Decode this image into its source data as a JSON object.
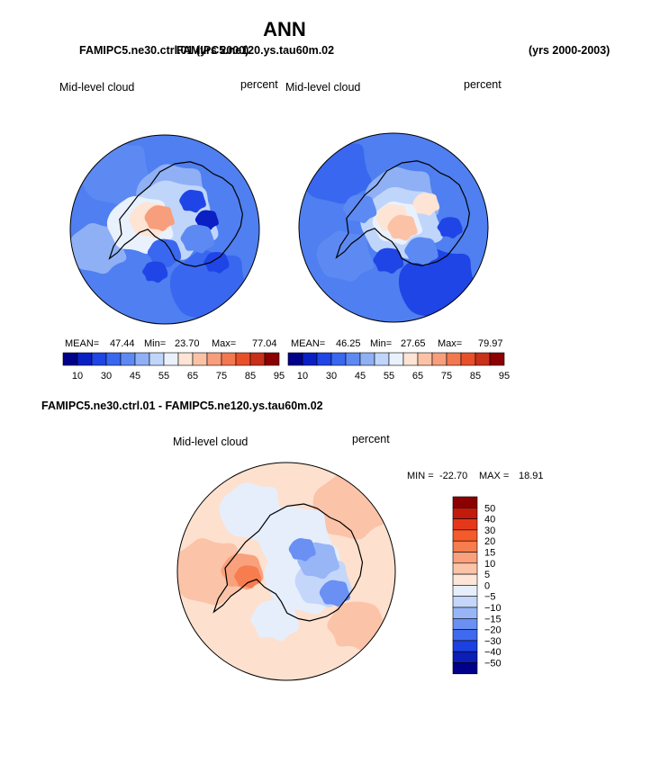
{
  "page": {
    "title": "ANN",
    "top_case_title": "FAMIPC5.ne30.ctrl.01 (yrs 2000)",
    "top_case_title_overlap": "FAMIPC5.ne120.ys.tau60m.02",
    "top_years": "(yrs 2000-2003)",
    "diff_title": "FAMIPC5.ne30.ctrl.01 - FAMIPC5.ne120.ys.tau60m.02"
  },
  "chart_data": [
    {
      "type": "heatmap",
      "projection": "south-polar-stereographic",
      "name": "panel-left",
      "variable_label": "Mid-level cloud",
      "units_label": "percent",
      "stats": {
        "mean_label": "MEAN=",
        "mean": "47.44",
        "min_label": "Min=",
        "min": "23.70",
        "max_label": "Max=",
        "max": "77.04"
      },
      "levels": [
        "10",
        "30",
        "45",
        "55",
        "65",
        "75",
        "85",
        "95"
      ]
    },
    {
      "type": "heatmap",
      "projection": "south-polar-stereographic",
      "name": "panel-right",
      "variable_label": "Mid-level cloud",
      "units_label": "percent",
      "stats": {
        "mean_label": "MEAN=",
        "mean": "46.25",
        "min_label": "Min=",
        "min": "27.65",
        "max_label": "Max=",
        "max": "79.97"
      },
      "levels": [
        "10",
        "30",
        "45",
        "55",
        "65",
        "75",
        "85",
        "95"
      ]
    },
    {
      "type": "heatmap",
      "projection": "south-polar-stereographic",
      "name": "panel-diff",
      "variable_label": "Mid-level cloud",
      "units_label": "percent",
      "stats": {
        "min_label": "MIN =",
        "min": "-22.70",
        "max_label": "MAX =",
        "max": "18.91"
      },
      "levels": [
        "50",
        "40",
        "30",
        "20",
        "15",
        "10",
        "5",
        "0",
        "−5",
        "−10",
        "−15",
        "−20",
        "−30",
        "−40",
        "−50"
      ]
    }
  ],
  "palettes": {
    "abs": [
      "#00008b",
      "#0a1fc4",
      "#1f45e6",
      "#3a67f0",
      "#5d8af2",
      "#8fb0f5",
      "#c0d5fa",
      "#e9f1fd",
      "#fde4d4",
      "#fbc2a6",
      "#f79e7c",
      "#f2784f",
      "#e9502a",
      "#c9301a",
      "#8b0000"
    ],
    "diff": [
      "#8b0000",
      "#c21a0c",
      "#e5381a",
      "#f55a2a",
      "#f77c4e",
      "#f9a07c",
      "#fbc3a8",
      "#fde5d8",
      "#e6eefc",
      "#c4d6fa",
      "#98b6f6",
      "#6990f2",
      "#3f69ee",
      "#1d40e0",
      "#0b1eb8",
      "#00008b"
    ],
    "coast": "#000000",
    "ocean_abs": "#4f7ff0",
    "ocean_diff": "#fde0ce"
  }
}
